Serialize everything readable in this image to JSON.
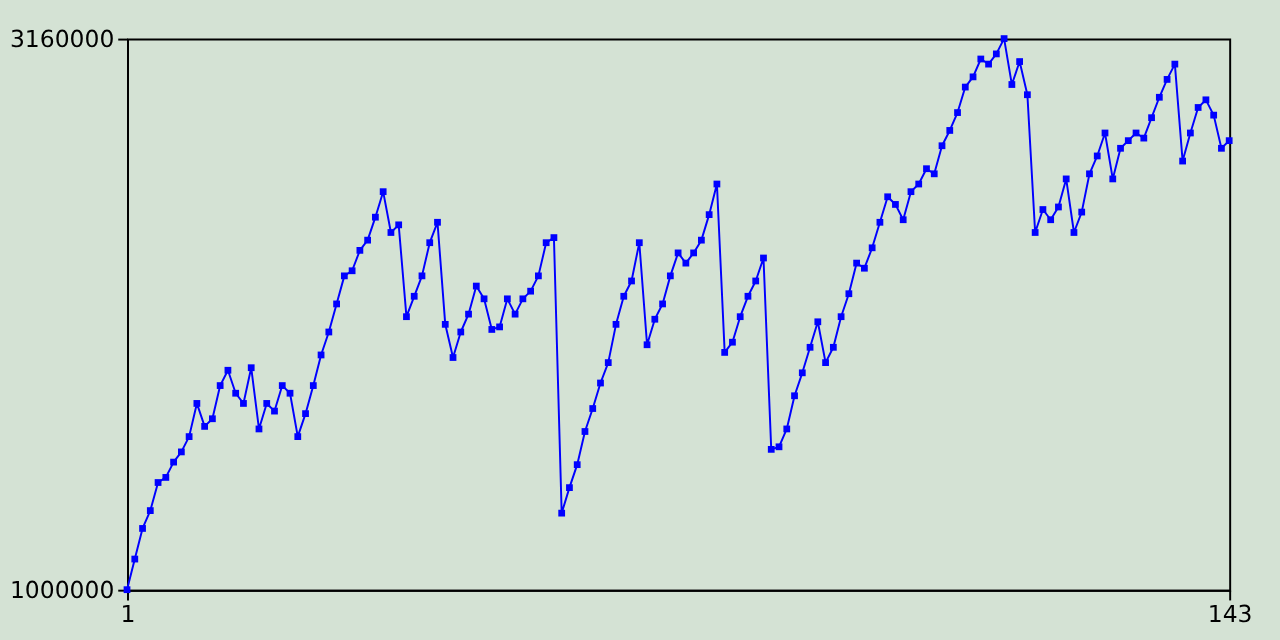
{
  "chart_data": {
    "type": "line",
    "x": [
      1,
      2,
      3,
      4,
      5,
      6,
      7,
      8,
      9,
      10,
      11,
      12,
      13,
      14,
      15,
      16,
      17,
      18,
      19,
      20,
      21,
      22,
      23,
      24,
      25,
      26,
      27,
      28,
      29,
      30,
      31,
      32,
      33,
      34,
      35,
      36,
      37,
      38,
      39,
      40,
      41,
      42,
      43,
      44,
      45,
      46,
      47,
      48,
      49,
      50,
      51,
      52,
      53,
      54,
      55,
      56,
      57,
      58,
      59,
      60,
      61,
      62,
      63,
      64,
      65,
      66,
      67,
      68,
      69,
      70,
      71,
      72,
      73,
      74,
      75,
      76,
      77,
      78,
      79,
      80,
      81,
      82,
      83,
      84,
      85,
      86,
      87,
      88,
      89,
      90,
      91,
      92,
      93,
      94,
      95,
      96,
      97,
      98,
      99,
      100,
      101,
      102,
      103,
      104,
      105,
      106,
      107,
      108,
      109,
      110,
      111,
      112,
      113,
      114,
      115,
      116,
      117,
      118,
      119,
      120,
      121,
      122,
      123,
      124,
      125,
      126,
      127,
      128,
      129,
      130,
      131,
      132,
      133,
      134,
      135,
      136,
      137,
      138,
      139,
      140,
      141,
      142,
      143
    ],
    "series": [
      {
        "color": "#0000ff",
        "values": [
          1000000,
          1120000,
          1240000,
          1310000,
          1420000,
          1440000,
          1500000,
          1540000,
          1600000,
          1730000,
          1640000,
          1670000,
          1800000,
          1860000,
          1770000,
          1730000,
          1870000,
          1630000,
          1730000,
          1700000,
          1800000,
          1770000,
          1600000,
          1690000,
          1800000,
          1920000,
          2010000,
          2120000,
          2230000,
          2250000,
          2330000,
          2370000,
          2460000,
          2560000,
          2400000,
          2430000,
          2070000,
          2150000,
          2230000,
          2360000,
          2440000,
          2040000,
          1910000,
          2010000,
          2080000,
          2190000,
          2140000,
          2020000,
          2030000,
          2140000,
          2080000,
          2140000,
          2170000,
          2230000,
          2360000,
          2380000,
          1300000,
          1400000,
          1490000,
          1620000,
          1710000,
          1810000,
          1890000,
          2040000,
          2150000,
          2210000,
          2360000,
          1960000,
          2060000,
          2120000,
          2230000,
          2320000,
          2280000,
          2320000,
          2370000,
          2470000,
          2590000,
          1930000,
          1970000,
          2070000,
          2150000,
          2210000,
          2300000,
          1550000,
          1560000,
          1630000,
          1760000,
          1850000,
          1950000,
          2050000,
          1890000,
          1950000,
          2070000,
          2160000,
          2280000,
          2260000,
          2340000,
          2440000,
          2540000,
          2510000,
          2450000,
          2560000,
          2590000,
          2650000,
          2630000,
          2740000,
          2800000,
          2870000,
          2970000,
          3010000,
          3080000,
          3060000,
          3100000,
          3160000,
          2980000,
          3070000,
          2940000,
          2400000,
          2490000,
          2450000,
          2500000,
          2610000,
          2400000,
          2480000,
          2630000,
          2700000,
          2790000,
          2610000,
          2730000,
          2760000,
          2790000,
          2770000,
          2850000,
          2930000,
          3000000,
          3060000,
          2680000,
          2790000,
          2890000,
          2920000,
          2860000,
          2730000,
          2760000
        ]
      }
    ],
    "xlim": [
      1,
      143
    ],
    "xticks": [
      1,
      143
    ],
    "ylim": [
      1000000,
      3160000
    ],
    "yticks": [
      {
        "value": 1000000,
        "label": "1000000"
      },
      {
        "value": 3160000,
        "label": "3160000"
      }
    ],
    "marker": "square",
    "line_style": "solid",
    "grid": false
  }
}
